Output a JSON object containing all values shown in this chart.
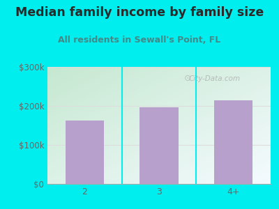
{
  "title": "Median family income by family size",
  "subtitle": "All residents in Sewall's Point, FL",
  "categories": [
    "2",
    "3",
    "4+"
  ],
  "values": [
    162000,
    197000,
    215000
  ],
  "bar_color": "#b8a0cc",
  "ylim": [
    0,
    300000
  ],
  "yticks": [
    0,
    100000,
    200000,
    300000
  ],
  "ytick_labels": [
    "$0",
    "$100k",
    "$200k",
    "$300k"
  ],
  "background_color": "#00eeee",
  "plot_bg_topleft": "#c8ecd8",
  "plot_bg_bottomright": "#f0faff",
  "title_color": "#2a2a2a",
  "subtitle_color": "#448888",
  "axis_color": "#666666",
  "watermark": "City-Data.com",
  "title_fontsize": 12.5,
  "subtitle_fontsize": 9.0,
  "grid_color": "#dddddd"
}
